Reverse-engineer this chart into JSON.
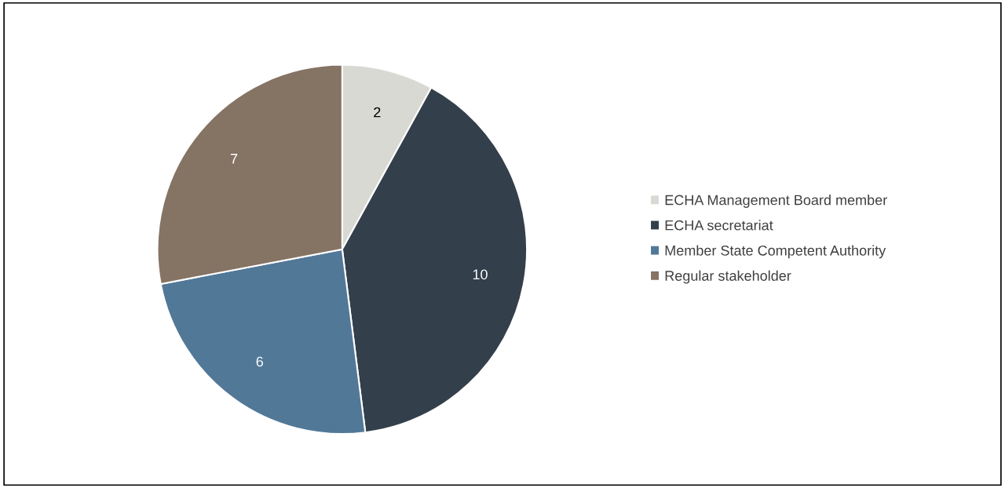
{
  "chart_data": {
    "type": "pie",
    "categories": [
      "ECHA Management Board member",
      "ECHA secretariat",
      "Member State Competent Authority",
      "Regular stakeholder"
    ],
    "values": [
      2,
      10,
      6,
      7
    ],
    "colors": [
      "#d9d9d4",
      "#333f4b",
      "#527898",
      "#857364"
    ],
    "data_labels": true,
    "legend": "right"
  }
}
